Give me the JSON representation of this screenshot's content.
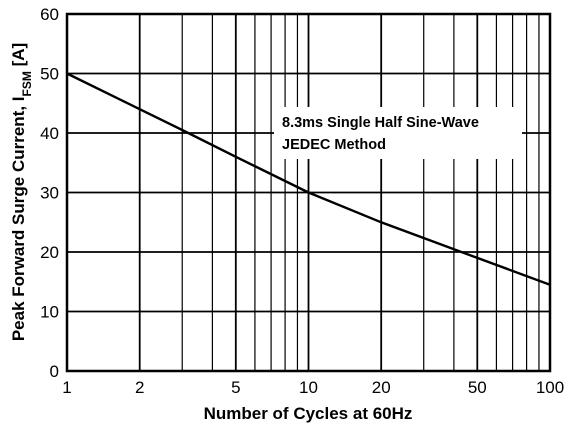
{
  "chart_data": {
    "type": "line",
    "xscale": "log",
    "xlim": [
      1,
      100
    ],
    "ylim": [
      0,
      60
    ],
    "xticks": [
      1,
      2,
      5,
      10,
      20,
      50,
      100
    ],
    "xtick_labels": [
      "1",
      "2",
      "5",
      "10",
      "20",
      "50",
      "100"
    ],
    "yticks": [
      0,
      10,
      20,
      30,
      40,
      50,
      60
    ],
    "ytick_labels": [
      "0",
      "10",
      "20",
      "30",
      "40",
      "50",
      "60"
    ],
    "xlabel": "Number of Cycles at 60Hz",
    "ylabel_main": "Peak Forward Surge Current, I",
    "ylabel_sub": "FSM",
    "ylabel_unit": " [A]",
    "grid": true,
    "annotation": [
      "8.3ms Single Half Sine-Wave",
      "JEDEC Method"
    ],
    "series": [
      {
        "x": [
          1,
          2,
          3,
          5,
          10,
          20,
          50,
          100
        ],
        "y": [
          50,
          44,
          40.5,
          36,
          30,
          25,
          19,
          14.5
        ]
      }
    ]
  }
}
